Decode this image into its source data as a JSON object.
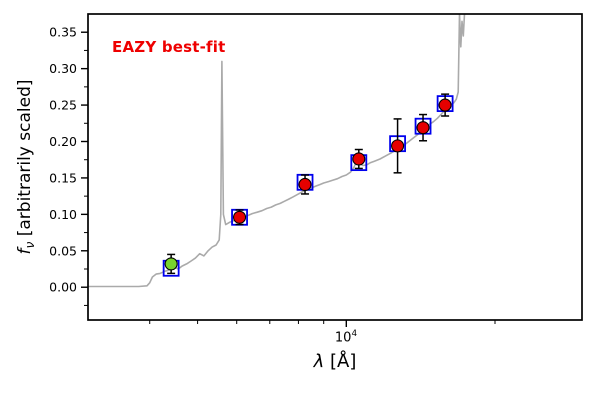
{
  "chart_data": {
    "type": "line",
    "title": "EAZY best-fit",
    "title_color": "#ee0000",
    "xlabel_sym": "λ",
    "xlabel_rest": " [Å]",
    "ylabel_f": "f",
    "ylabel_sub": "ν",
    "ylabel_rest": " [arbitrarily scaled]",
    "xscale": "log",
    "xlim": [
      3000,
      30000
    ],
    "ylim": [
      -0.045,
      0.375
    ],
    "grid": false,
    "legend": "none",
    "x_major_ticks": [
      {
        "value": 10000,
        "base": "10",
        "exp": "4"
      }
    ],
    "x_minor_ticks": [
      4000,
      5000,
      6000,
      7000,
      8000,
      9000,
      20000
    ],
    "y_major_ticks": [
      {
        "value": 0.0,
        "label": "0.00"
      },
      {
        "value": 0.05,
        "label": "0.05"
      },
      {
        "value": 0.1,
        "label": "0.10"
      },
      {
        "value": 0.15,
        "label": "0.15"
      },
      {
        "value": 0.2,
        "label": "0.20"
      },
      {
        "value": 0.25,
        "label": "0.25"
      },
      {
        "value": 0.3,
        "label": "0.30"
      },
      {
        "value": 0.35,
        "label": "0.35"
      }
    ],
    "y_minor_ticks": [
      -0.025,
      0.025,
      0.075,
      0.125,
      0.175,
      0.225,
      0.275,
      0.325
    ],
    "series": [
      {
        "name": "bestfit-spectrum",
        "kind": "line",
        "color": "#aaaaaa",
        "points": [
          [
            3000,
            0.001
          ],
          [
            3400,
            0.001
          ],
          [
            3800,
            0.001
          ],
          [
            3950,
            0.002
          ],
          [
            4000,
            0.006
          ],
          [
            4050,
            0.014
          ],
          [
            4120,
            0.018
          ],
          [
            4200,
            0.019
          ],
          [
            4300,
            0.022
          ],
          [
            4400,
            0.024
          ],
          [
            4500,
            0.027
          ],
          [
            4570,
            0.025
          ],
          [
            4650,
            0.029
          ],
          [
            4750,
            0.032
          ],
          [
            4850,
            0.036
          ],
          [
            4950,
            0.04
          ],
          [
            5050,
            0.046
          ],
          [
            5150,
            0.043
          ],
          [
            5250,
            0.05
          ],
          [
            5350,
            0.055
          ],
          [
            5450,
            0.058
          ],
          [
            5530,
            0.065
          ],
          [
            5570,
            0.1
          ],
          [
            5600,
            0.31
          ],
          [
            5640,
            0.1
          ],
          [
            5700,
            0.086
          ],
          [
            5800,
            0.089
          ],
          [
            5900,
            0.091
          ],
          [
            6000,
            0.093
          ],
          [
            6150,
            0.096
          ],
          [
            6300,
            0.098
          ],
          [
            6450,
            0.101
          ],
          [
            6600,
            0.103
          ],
          [
            6750,
            0.105
          ],
          [
            6900,
            0.108
          ],
          [
            7050,
            0.11
          ],
          [
            7200,
            0.113
          ],
          [
            7350,
            0.115
          ],
          [
            7500,
            0.118
          ],
          [
            7650,
            0.121
          ],
          [
            7800,
            0.124
          ],
          [
            7950,
            0.127
          ],
          [
            8100,
            0.13
          ],
          [
            8250,
            0.133
          ],
          [
            8400,
            0.135
          ],
          [
            8550,
            0.137
          ],
          [
            8700,
            0.139
          ],
          [
            8850,
            0.141
          ],
          [
            9000,
            0.143
          ],
          [
            9200,
            0.145
          ],
          [
            9400,
            0.147
          ],
          [
            9600,
            0.149
          ],
          [
            9800,
            0.152
          ],
          [
            10000,
            0.154
          ],
          [
            10200,
            0.158
          ],
          [
            10350,
            0.164
          ],
          [
            10500,
            0.173
          ],
          [
            10650,
            0.17
          ],
          [
            10800,
            0.167
          ],
          [
            11000,
            0.168
          ],
          [
            11200,
            0.171
          ],
          [
            11400,
            0.173
          ],
          [
            11700,
            0.176
          ],
          [
            12000,
            0.18
          ],
          [
            12300,
            0.184
          ],
          [
            12600,
            0.188
          ],
          [
            12900,
            0.192
          ],
          [
            13200,
            0.197
          ],
          [
            13500,
            0.202
          ],
          [
            13800,
            0.207
          ],
          [
            14100,
            0.212
          ],
          [
            14400,
            0.218
          ],
          [
            14700,
            0.223
          ],
          [
            15000,
            0.227
          ],
          [
            15300,
            0.232
          ],
          [
            15600,
            0.238
          ],
          [
            15900,
            0.245
          ],
          [
            16200,
            0.25
          ],
          [
            16500,
            0.253
          ],
          [
            16700,
            0.258
          ],
          [
            16850,
            0.268
          ],
          [
            16950,
            0.375
          ],
          [
            17050,
            0.33
          ],
          [
            17150,
            0.365
          ],
          [
            17250,
            0.345
          ],
          [
            17400,
            0.39
          ],
          [
            17600,
            0.44
          ],
          [
            18000,
            0.6
          ],
          [
            19000,
            0.9
          ],
          [
            30000,
            1.2
          ]
        ]
      },
      {
        "name": "template-photometry",
        "kind": "scatter-open-square",
        "color": "#0000ee",
        "points": [
          [
            4420,
            0.026
          ],
          [
            6080,
            0.096
          ],
          [
            8250,
            0.144
          ],
          [
            10600,
            0.171
          ],
          [
            12700,
            0.197
          ],
          [
            14300,
            0.221
          ],
          [
            15850,
            0.252
          ]
        ]
      },
      {
        "name": "observed-photometry",
        "kind": "scatter-errorbar",
        "color": "#e50000",
        "marker_name": "photometry-point",
        "points": [
          {
            "x": 6080,
            "y": 0.096,
            "yerr": 0.01
          },
          {
            "x": 8250,
            "y": 0.141,
            "yerr": 0.013
          },
          {
            "x": 10600,
            "y": 0.176,
            "yerr": 0.013
          },
          {
            "x": 12700,
            "y": 0.194,
            "yerr": 0.037
          },
          {
            "x": 14300,
            "y": 0.219,
            "yerr": 0.018
          },
          {
            "x": 15850,
            "y": 0.25,
            "yerr": 0.015
          }
        ]
      },
      {
        "name": "highlighted-photometry",
        "kind": "scatter-errorbar",
        "color": "#78d22d",
        "marker_name": "photometry-point-highlight",
        "points": [
          {
            "x": 4420,
            "y": 0.032,
            "yerr": 0.013
          }
        ]
      }
    ]
  }
}
